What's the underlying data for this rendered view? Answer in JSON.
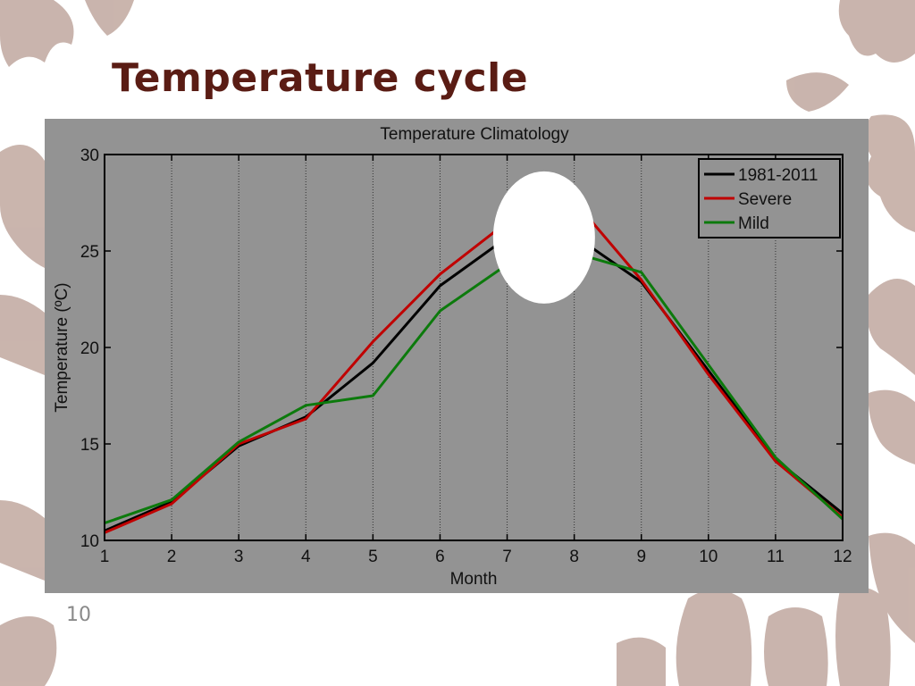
{
  "slide": {
    "title": "Temperature cycle",
    "page_number": "10"
  },
  "chart_data": {
    "type": "line",
    "title": "Temperature Climatology",
    "xlabel": "Month",
    "ylabel": "Temperature (ºC)",
    "x": [
      1,
      2,
      3,
      4,
      5,
      6,
      7,
      8,
      9,
      10,
      11,
      12
    ],
    "xlim": [
      1,
      12
    ],
    "ylim": [
      10,
      30
    ],
    "xticks": [
      "1",
      "2",
      "3",
      "4",
      "5",
      "6",
      "7",
      "8",
      "9",
      "10",
      "11",
      "12"
    ],
    "yticks": [
      "10",
      "15",
      "20",
      "25",
      "30"
    ],
    "grid": "vertical dotted",
    "legend_position": "top-right",
    "highlight": {
      "shape": "ellipse",
      "x_center": 7.55,
      "y_center": 25.7,
      "color": "#ffffff"
    },
    "series": [
      {
        "name": "1981-2011",
        "color": "#000000",
        "values": [
          10.5,
          12.0,
          14.9,
          16.4,
          19.2,
          23.2,
          25.7,
          25.8,
          23.4,
          18.8,
          14.2,
          11.4
        ]
      },
      {
        "name": "Severe",
        "color": "#c00000",
        "values": [
          10.4,
          11.9,
          15.0,
          16.3,
          20.3,
          23.8,
          26.5,
          27.6,
          23.5,
          18.6,
          14.1,
          11.2
        ]
      },
      {
        "name": "Mild",
        "color": "#0c7a0c",
        "values": [
          10.9,
          12.1,
          15.1,
          17.0,
          17.5,
          21.9,
          24.3,
          24.9,
          23.9,
          19.1,
          14.3,
          11.1
        ]
      }
    ]
  }
}
